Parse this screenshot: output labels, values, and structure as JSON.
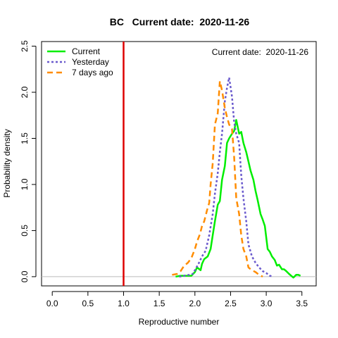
{
  "chart_data": {
    "type": "line",
    "title": "BC   Current date:  2020-11-26",
    "annotation": "Current date:  2020-11-26",
    "xlabel": "Reproductive number",
    "ylabel": "Probability density",
    "xlim": [
      -0.15,
      3.7
    ],
    "ylim": [
      -0.1,
      2.55
    ],
    "xticks": [
      0,
      0.5,
      1,
      1.5,
      2,
      2.5,
      3,
      3.5
    ],
    "xtick_labels": [
      "0.0",
      "0.5",
      "1.0",
      "1.5",
      "2.0",
      "2.5",
      "3.0",
      "3.5"
    ],
    "yticks": [
      0,
      0.5,
      1,
      1.5,
      2,
      2.5
    ],
    "ytick_labels": [
      "0.0",
      "0.5",
      "1.0",
      "1.5",
      "2.0",
      "2.5"
    ],
    "grid": false,
    "legend_position": "top-left",
    "reference_line": {
      "x": 1.0,
      "color": "#dd0000"
    },
    "zero_line_color": "#bbbbbb",
    "series": [
      {
        "name": "Current",
        "color": "#00ee00",
        "dash": "solid",
        "x": [
          1.73,
          1.8,
          1.87,
          1.95,
          2.0,
          2.03,
          2.08,
          2.1,
          2.13,
          2.18,
          2.22,
          2.25,
          2.28,
          2.32,
          2.35,
          2.38,
          2.42,
          2.45,
          2.48,
          2.52,
          2.55,
          2.58,
          2.62,
          2.65,
          2.68,
          2.72,
          2.75,
          2.78,
          2.82,
          2.85,
          2.88,
          2.92,
          2.95,
          2.98,
          3.02,
          3.05,
          3.08,
          3.12,
          3.15,
          3.18,
          3.22,
          3.25,
          3.28,
          3.32,
          3.35,
          3.38,
          3.42,
          3.45,
          3.48
        ],
        "y": [
          0.0,
          0.01,
          0.01,
          0.01,
          0.05,
          0.1,
          0.07,
          0.14,
          0.19,
          0.22,
          0.3,
          0.45,
          0.6,
          0.78,
          0.82,
          1.05,
          1.2,
          1.45,
          1.5,
          1.55,
          1.58,
          1.7,
          1.55,
          1.57,
          1.45,
          1.35,
          1.25,
          1.15,
          1.05,
          0.93,
          0.83,
          0.68,
          0.62,
          0.55,
          0.3,
          0.27,
          0.22,
          0.18,
          0.12,
          0.13,
          0.08,
          0.08,
          0.06,
          0.03,
          0.01,
          -0.01,
          0.02,
          0.02,
          0.01
        ]
      },
      {
        "name": "Yesterday",
        "color": "#6a5acd",
        "dash": "dotted",
        "x": [
          1.78,
          1.85,
          1.92,
          1.97,
          2.0,
          2.05,
          2.1,
          2.15,
          2.2,
          2.25,
          2.28,
          2.32,
          2.35,
          2.38,
          2.42,
          2.45,
          2.48,
          2.52,
          2.55,
          2.58,
          2.62,
          2.65,
          2.68,
          2.72,
          2.75,
          2.8,
          2.85,
          2.9,
          2.95,
          3.0,
          3.05,
          3.1
        ],
        "y": [
          0.0,
          0.01,
          0.02,
          0.03,
          0.07,
          0.14,
          0.22,
          0.28,
          0.45,
          0.68,
          0.9,
          1.12,
          1.35,
          1.55,
          1.9,
          2.05,
          2.16,
          1.95,
          1.68,
          1.55,
          1.45,
          1.1,
          0.85,
          0.6,
          0.35,
          0.22,
          0.15,
          0.1,
          0.06,
          0.04,
          0.01,
          0.0
        ]
      },
      {
        "name": "7 days ago",
        "color": "#ff8c00",
        "dash": "dashed",
        "x": [
          1.68,
          1.75,
          1.8,
          1.85,
          1.9,
          1.95,
          2.0,
          2.03,
          2.07,
          2.1,
          2.13,
          2.17,
          2.2,
          2.22,
          2.25,
          2.28,
          2.32,
          2.35,
          2.38,
          2.42,
          2.45,
          2.48,
          2.52,
          2.55,
          2.58,
          2.62,
          2.65,
          2.68,
          2.72,
          2.75,
          2.8,
          2.85,
          2.9,
          2.95
        ],
        "y": [
          0.02,
          0.03,
          0.06,
          0.12,
          0.15,
          0.2,
          0.3,
          0.38,
          0.46,
          0.55,
          0.6,
          0.72,
          0.8,
          1.0,
          1.23,
          1.65,
          1.77,
          2.12,
          2.02,
          1.83,
          1.73,
          1.65,
          1.6,
          1.3,
          0.85,
          0.68,
          0.45,
          0.3,
          0.22,
          0.1,
          0.07,
          0.05,
          0.02,
          0.0
        ]
      }
    ]
  }
}
